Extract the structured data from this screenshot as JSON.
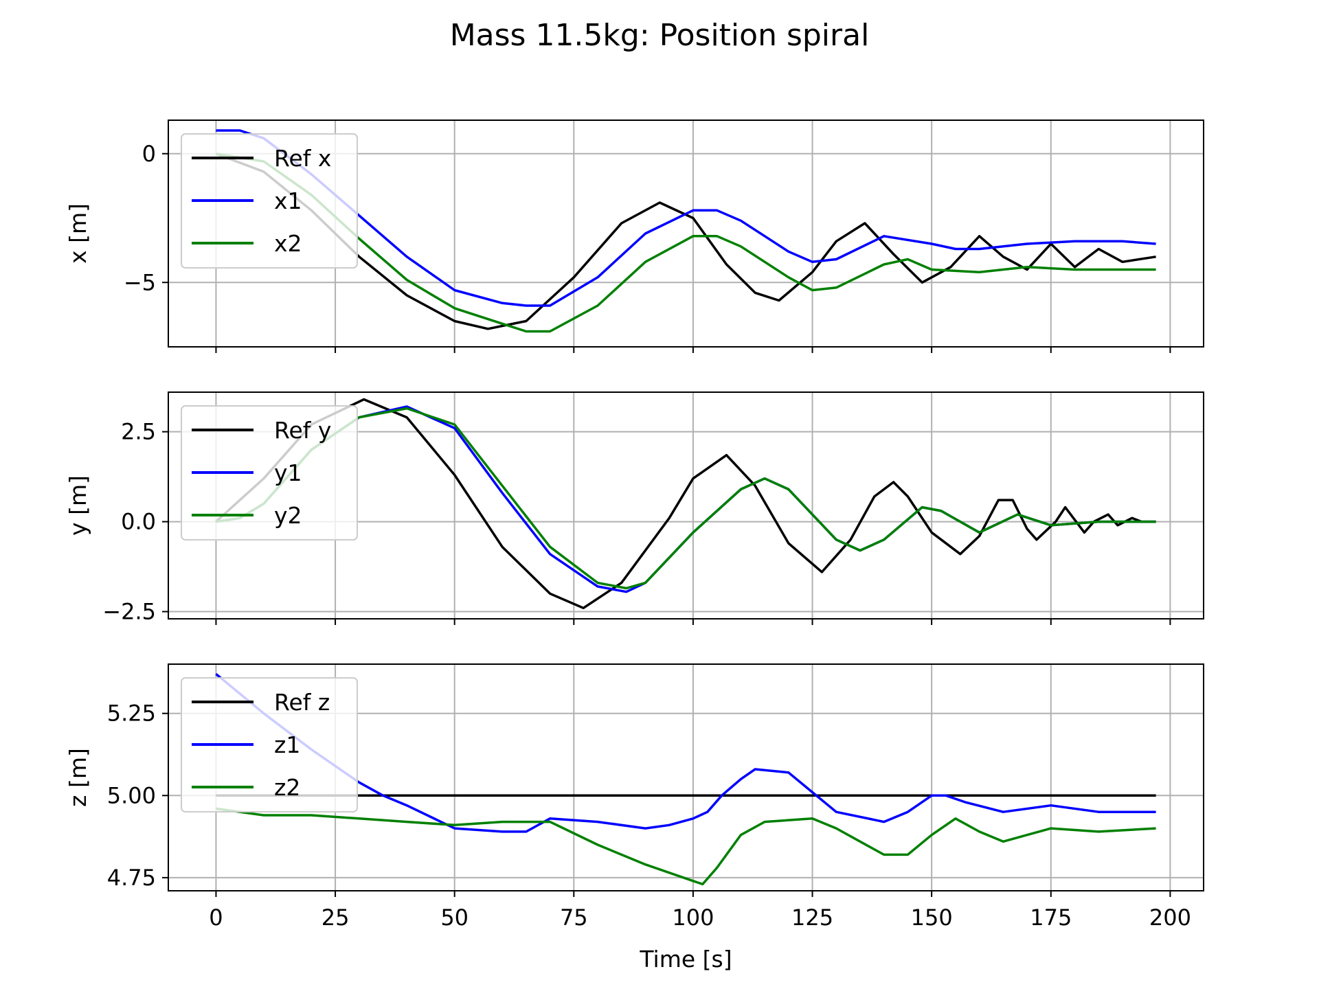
{
  "title": "Mass 11.5kg: Position spiral",
  "colors": {
    "ref": "#000000",
    "s1": "#0000ff",
    "s2": "#008000",
    "grid": "#b0b0b0"
  },
  "chart_data": [
    {
      "type": "line",
      "ylabel": "x [m]",
      "xlim": [
        -10,
        207
      ],
      "ylim": [
        -7.5,
        1.3
      ],
      "yticks": [
        0,
        -5
      ],
      "ytick_labels": [
        "0",
        "−5"
      ],
      "grid": true,
      "legend_position": "upper-left",
      "series": [
        {
          "name": "Ref x",
          "color": "#000000",
          "x": [
            0,
            10,
            20,
            30,
            40,
            50,
            57,
            65,
            75,
            85,
            93,
            100,
            107,
            113,
            118,
            125,
            130,
            136,
            142,
            148,
            154,
            160,
            165,
            170,
            175,
            180,
            185,
            190,
            197
          ],
          "y": [
            0,
            -0.7,
            -2.2,
            -4.0,
            -5.5,
            -6.5,
            -6.8,
            -6.5,
            -4.8,
            -2.7,
            -1.9,
            -2.5,
            -4.3,
            -5.4,
            -5.7,
            -4.6,
            -3.4,
            -2.7,
            -3.9,
            -5.0,
            -4.4,
            -3.2,
            -4.0,
            -4.5,
            -3.5,
            -4.4,
            -3.7,
            -4.2,
            -4.0
          ]
        },
        {
          "name": "x1",
          "color": "#0000ff",
          "x": [
            0,
            5,
            10,
            20,
            30,
            40,
            50,
            60,
            65,
            70,
            80,
            90,
            100,
            105,
            110,
            120,
            125,
            130,
            140,
            150,
            155,
            160,
            170,
            180,
            190,
            197
          ],
          "y": [
            0.9,
            0.9,
            0.6,
            -0.8,
            -2.4,
            -4.0,
            -5.3,
            -5.8,
            -5.9,
            -5.9,
            -4.8,
            -3.1,
            -2.2,
            -2.2,
            -2.6,
            -3.8,
            -4.2,
            -4.1,
            -3.2,
            -3.5,
            -3.7,
            -3.7,
            -3.5,
            -3.4,
            -3.4,
            -3.5
          ]
        },
        {
          "name": "x2",
          "color": "#008000",
          "x": [
            0,
            10,
            20,
            30,
            40,
            50,
            60,
            65,
            70,
            80,
            90,
            100,
            105,
            110,
            120,
            125,
            130,
            140,
            145,
            150,
            160,
            170,
            180,
            190,
            197
          ],
          "y": [
            0,
            -0.3,
            -1.6,
            -3.3,
            -4.9,
            -6.0,
            -6.6,
            -6.9,
            -6.9,
            -5.9,
            -4.2,
            -3.2,
            -3.2,
            -3.6,
            -4.8,
            -5.3,
            -5.2,
            -4.3,
            -4.1,
            -4.5,
            -4.6,
            -4.4,
            -4.5,
            -4.5,
            -4.5
          ]
        }
      ]
    },
    {
      "type": "line",
      "ylabel": "y [m]",
      "xlim": [
        -10,
        207
      ],
      "ylim": [
        -2.7,
        3.6
      ],
      "yticks": [
        2.5,
        0.0,
        -2.5
      ],
      "ytick_labels": [
        "2.5",
        "0.0",
        "−2.5"
      ],
      "grid": true,
      "legend_position": "upper-left",
      "series": [
        {
          "name": "Ref y",
          "color": "#000000",
          "x": [
            0,
            10,
            20,
            31,
            40,
            50,
            60,
            70,
            77,
            85,
            95,
            100,
            107,
            113,
            120,
            127,
            133,
            138,
            142,
            145,
            150,
            156,
            160,
            164,
            167,
            170,
            172,
            176,
            178,
            182,
            184,
            187,
            189,
            192,
            194,
            197
          ],
          "y": [
            0,
            1.2,
            2.7,
            3.4,
            2.9,
            1.3,
            -0.7,
            -2.0,
            -2.4,
            -1.7,
            0.1,
            1.2,
            1.85,
            1.0,
            -0.6,
            -1.4,
            -0.5,
            0.7,
            1.1,
            0.7,
            -0.3,
            -0.9,
            -0.4,
            0.6,
            0.6,
            -0.2,
            -0.5,
            0.0,
            0.4,
            -0.3,
            0.0,
            0.2,
            -0.1,
            0.1,
            0.0,
            0.0
          ]
        },
        {
          "name": "y1",
          "color": "#0000ff",
          "x": [
            0,
            5,
            10,
            20,
            30,
            40,
            50,
            60,
            70,
            80,
            86,
            90,
            100,
            110,
            115,
            120,
            130,
            135,
            140,
            148,
            152,
            160,
            168,
            175,
            185,
            197
          ],
          "y": [
            0,
            0.1,
            0.5,
            2.0,
            2.9,
            3.2,
            2.6,
            0.8,
            -0.9,
            -1.8,
            -1.95,
            -1.7,
            -0.3,
            0.9,
            1.2,
            0.9,
            -0.5,
            -0.8,
            -0.5,
            0.4,
            0.3,
            -0.3,
            0.2,
            -0.1,
            0.0,
            0.0
          ]
        },
        {
          "name": "y2",
          "color": "#008000",
          "x": [
            0,
            5,
            10,
            20,
            30,
            40,
            50,
            60,
            70,
            80,
            86,
            90,
            100,
            110,
            115,
            120,
            130,
            135,
            140,
            148,
            152,
            160,
            168,
            175,
            185,
            197
          ],
          "y": [
            0,
            0.1,
            0.5,
            2.0,
            2.9,
            3.15,
            2.7,
            1.0,
            -0.7,
            -1.7,
            -1.85,
            -1.7,
            -0.3,
            0.9,
            1.2,
            0.9,
            -0.5,
            -0.8,
            -0.5,
            0.4,
            0.3,
            -0.3,
            0.2,
            -0.1,
            0.0,
            0.0
          ]
        }
      ]
    },
    {
      "type": "line",
      "xlabel": "Time [s]",
      "ylabel": "z [m]",
      "xlim": [
        -10,
        207
      ],
      "ylim": [
        4.71,
        5.4
      ],
      "xticks": [
        0,
        25,
        50,
        75,
        100,
        125,
        150,
        175,
        200
      ],
      "xtick_labels": [
        "0",
        "25",
        "50",
        "75",
        "100",
        "125",
        "150",
        "175",
        "200"
      ],
      "yticks": [
        5.25,
        5.0,
        4.75
      ],
      "ytick_labels": [
        "5.25",
        "5.00",
        "4.75"
      ],
      "grid": true,
      "legend_position": "upper-left",
      "series": [
        {
          "name": "Ref z",
          "color": "#000000",
          "x": [
            0,
            197
          ],
          "y": [
            5.0,
            5.0
          ]
        },
        {
          "name": "z1",
          "color": "#0000ff",
          "x": [
            0,
            10,
            20,
            30,
            35,
            40,
            50,
            60,
            65,
            70,
            80,
            90,
            95,
            100,
            103,
            106,
            110,
            113,
            120,
            125,
            130,
            140,
            145,
            150,
            153,
            157,
            165,
            175,
            185,
            197
          ],
          "y": [
            5.37,
            5.25,
            5.14,
            5.04,
            5.0,
            4.97,
            4.9,
            4.89,
            4.89,
            4.93,
            4.92,
            4.9,
            4.91,
            4.93,
            4.95,
            5.0,
            5.05,
            5.08,
            5.07,
            5.01,
            4.95,
            4.92,
            4.95,
            5.0,
            5.0,
            4.98,
            4.95,
            4.97,
            4.95,
            4.95
          ]
        },
        {
          "name": "z2",
          "color": "#008000",
          "x": [
            0,
            10,
            20,
            30,
            40,
            50,
            60,
            70,
            80,
            90,
            100,
            102,
            105,
            110,
            115,
            125,
            130,
            135,
            140,
            145,
            150,
            155,
            160,
            165,
            170,
            175,
            185,
            197
          ],
          "y": [
            4.96,
            4.94,
            4.94,
            4.93,
            4.92,
            4.91,
            4.92,
            4.92,
            4.85,
            4.79,
            4.74,
            4.73,
            4.78,
            4.88,
            4.92,
            4.93,
            4.9,
            4.86,
            4.82,
            4.82,
            4.88,
            4.93,
            4.89,
            4.86,
            4.88,
            4.9,
            4.89,
            4.9
          ]
        }
      ]
    }
  ]
}
